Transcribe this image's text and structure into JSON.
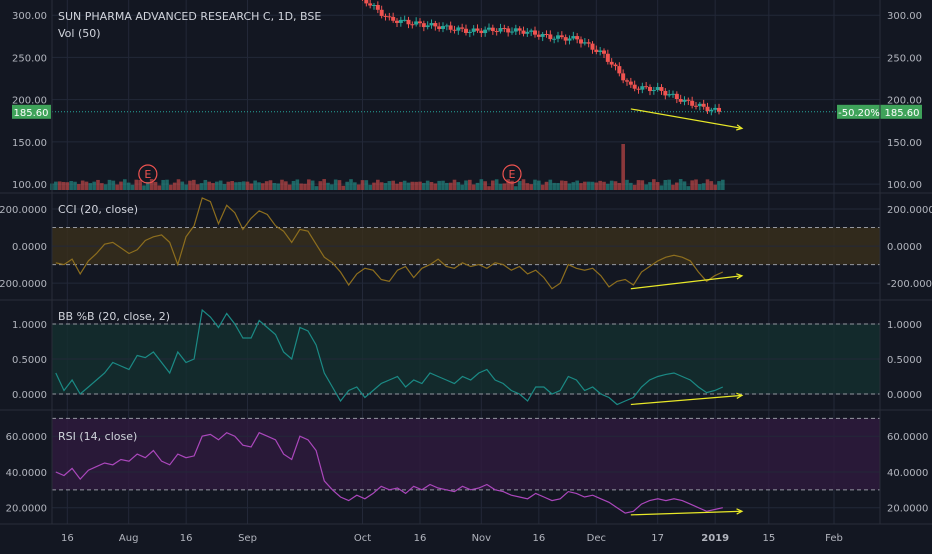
{
  "colors": {
    "background": "#131722",
    "grid": "#232838",
    "axis_text": "#b2b5be",
    "up": "#26a69a",
    "down": "#ef5350",
    "cci_line": "#8d6e1e",
    "cci_band": "#3a2f1c",
    "bb_line": "#1b8a85",
    "bb_band": "#14302f",
    "rsi_line": "#ab47bc",
    "rsi_band": "#2f1a3f",
    "annotation": "#e8e828",
    "price_label": "#3fa35a",
    "earnings": "#ef5350"
  },
  "chart_data": [
    {
      "type": "candlestick",
      "title": "SUN PHARMA ADVANCED RESEARCH C, 1D, BSE",
      "subtitle": "Vol (50)",
      "y_ticks": [
        "300.00",
        "250.00",
        "200.00",
        "150.00",
        "100.00"
      ],
      "ylim": [
        93,
        318
      ],
      "last_price_label": "185.60",
      "last_price": 185.6,
      "change_label": "-50.20%",
      "earnings_markers": [
        "E",
        "E"
      ],
      "earnings_dates": [
        "2018-08-06",
        "2018-11-09"
      ],
      "x_ticks": [
        "16",
        "Aug",
        "16",
        "Sep",
        "Oct",
        "16",
        "Nov",
        "16",
        "Dec",
        "17",
        "2019",
        "15",
        "Feb"
      ],
      "x_tick_dates": [
        "2018-07-16",
        "2018-08-01",
        "2018-08-16",
        "2018-09-01",
        "2018-10-01",
        "2018-10-16",
        "2018-11-01",
        "2018-11-16",
        "2018-12-01",
        "2018-12-17",
        "2019-01-01",
        "2019-01-15",
        "2019-02-01"
      ],
      "close_series": [
        {
          "date": "2018-10-01",
          "close": 320
        },
        {
          "date": "2018-10-08",
          "close": 295
        },
        {
          "date": "2018-10-15",
          "close": 290
        },
        {
          "date": "2018-10-22",
          "close": 286
        },
        {
          "date": "2018-10-29",
          "close": 281
        },
        {
          "date": "2018-11-05",
          "close": 283
        },
        {
          "date": "2018-11-12",
          "close": 281
        },
        {
          "date": "2018-11-19",
          "close": 274
        },
        {
          "date": "2018-11-26",
          "close": 272
        },
        {
          "date": "2018-12-03",
          "close": 253
        },
        {
          "date": "2018-12-10",
          "close": 215
        },
        {
          "date": "2018-12-17",
          "close": 212
        },
        {
          "date": "2018-12-24",
          "close": 198
        },
        {
          "date": "2018-12-31",
          "close": 188
        },
        {
          "date": "2019-01-03",
          "close": 185.6
        }
      ],
      "trend_arrow": {
        "from": {
          "date": "2018-12-10",
          "value": 189
        },
        "to": {
          "date": "2019-01-08",
          "value": 166
        }
      }
    },
    {
      "type": "line",
      "title": "CCI (20, close)",
      "y_ticks": [
        "200.0000",
        "0.0000",
        "-200.0000"
      ],
      "ylim": [
        -280,
        270
      ],
      "band": [
        -100,
        100
      ],
      "values": [
        -90,
        -100,
        -70,
        -150,
        -80,
        -40,
        10,
        20,
        -10,
        -40,
        -20,
        30,
        50,
        60,
        20,
        -100,
        50,
        110,
        260,
        240,
        120,
        220,
        180,
        90,
        150,
        190,
        170,
        110,
        80,
        20,
        90,
        80,
        10,
        -60,
        -90,
        -140,
        -210,
        -150,
        -120,
        -130,
        -180,
        -190,
        -130,
        -110,
        -170,
        -120,
        -100,
        -70,
        -110,
        -120,
        -90,
        -110,
        -100,
        -120,
        -90,
        -100,
        -130,
        -110,
        -150,
        -130,
        -170,
        -230,
        -200,
        -100,
        -120,
        -130,
        -120,
        -160,
        -220,
        -190,
        -180,
        -210,
        -140,
        -110,
        -80,
        -60,
        -50,
        -60,
        -80,
        -140,
        -190,
        -160,
        -140
      ],
      "trend_arrow": {
        "from": {
          "date": "2018-12-10",
          "value": -230
        },
        "to": {
          "date": "2019-01-08",
          "value": -160
        }
      }
    },
    {
      "type": "line",
      "title": "BB %B (20, close, 2)",
      "y_ticks": [
        "1.0000",
        "0.5000",
        "0.0000"
      ],
      "ylim": [
        -0.2,
        1.3
      ],
      "band": [
        0,
        1
      ],
      "values": [
        0.3,
        0.05,
        0.2,
        0.0,
        0.1,
        0.2,
        0.3,
        0.45,
        0.4,
        0.35,
        0.55,
        0.52,
        0.6,
        0.45,
        0.3,
        0.6,
        0.45,
        0.5,
        1.2,
        1.1,
        0.95,
        1.15,
        1.0,
        0.8,
        0.8,
        1.05,
        0.95,
        0.85,
        0.6,
        0.5,
        0.95,
        0.9,
        0.7,
        0.3,
        0.1,
        -0.1,
        0.05,
        0.1,
        -0.05,
        0.05,
        0.15,
        0.2,
        0.25,
        0.1,
        0.2,
        0.15,
        0.3,
        0.25,
        0.2,
        0.15,
        0.25,
        0.2,
        0.3,
        0.35,
        0.2,
        0.15,
        0.05,
        0.0,
        -0.1,
        0.1,
        0.1,
        0.0,
        0.05,
        0.25,
        0.2,
        0.05,
        0.1,
        0.0,
        -0.05,
        -0.15,
        -0.1,
        -0.05,
        0.1,
        0.2,
        0.25,
        0.28,
        0.3,
        0.25,
        0.2,
        0.1,
        0.02,
        0.05,
        0.1
      ],
      "trend_arrow": {
        "from": {
          "date": "2018-12-10",
          "value": -0.15
        },
        "to": {
          "date": "2019-01-08",
          "value": -0.02
        }
      }
    },
    {
      "type": "line",
      "title": "RSI (14, close)",
      "y_ticks": [
        "60.0000",
        "40.0000",
        "20.0000"
      ],
      "ylim": [
        12,
        73
      ],
      "band": [
        30,
        70
      ],
      "values": [
        40,
        38,
        42,
        36,
        41,
        43,
        45,
        44,
        47,
        46,
        50,
        48,
        52,
        46,
        44,
        50,
        48,
        49,
        60,
        61,
        58,
        62,
        60,
        55,
        54,
        62,
        60,
        58,
        50,
        47,
        60,
        58,
        52,
        35,
        30,
        26,
        24,
        27,
        25,
        28,
        32,
        30,
        31,
        28,
        32,
        30,
        33,
        31,
        30,
        29,
        32,
        30,
        31,
        33,
        30,
        29,
        27,
        26,
        25,
        28,
        26,
        24,
        25,
        29,
        28,
        26,
        27,
        25,
        23,
        20,
        17,
        18,
        22,
        24,
        25,
        24,
        25,
        24,
        22,
        20,
        18,
        19,
        20
      ],
      "trend_arrow": {
        "from": {
          "date": "2018-12-10",
          "value": 16
        },
        "to": {
          "date": "2019-01-08",
          "value": 18
        }
      }
    }
  ]
}
